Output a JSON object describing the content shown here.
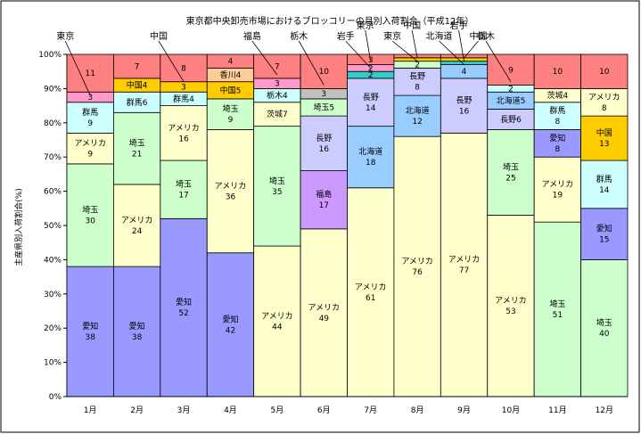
{
  "chart_data": {
    "type": "bar",
    "stacked": true,
    "title": "東京都中央卸売市場におけるブロッコリーの月別入荷割合（平成12年）",
    "ylabel": "主産県別入荷割合(%)",
    "xlabel": "",
    "ylim": [
      0,
      100
    ],
    "y_ticks": [
      "0%",
      "10%",
      "20%",
      "30%",
      "40%",
      "50%",
      "60%",
      "70%",
      "80%",
      "90%",
      "100%"
    ],
    "categories": [
      "1月",
      "2月",
      "3月",
      "4月",
      "5月",
      "6月",
      "7月",
      "8月",
      "9月",
      "10月",
      "11月",
      "12月"
    ],
    "grid": false,
    "colors": {
      "愛知": "#9999ff",
      "アメリカ": "#ffffcc",
      "埼玉": "#ccffcc",
      "群馬": "#ccffff",
      "東京": "#ff99cc",
      "中国": "#ffcc00",
      "香川": "#ffcc99",
      "茨城": "#ffffcc",
      "栃木": "#ccffff",
      "福島": "#ff99cc",
      "長野": "#ccccff",
      "北海道": "#99ccff",
      "岩手": "#33cccc",
      "その他": "#ff8080",
      "gray": "#c0c0c0"
    },
    "stacks": [
      [
        {
          "name": "愛知",
          "value": 38,
          "label": "愛知\n38",
          "color": "#9999ff"
        },
        {
          "name": "埼玉",
          "value": 30,
          "label": "埼玉\n30",
          "color": "#ccffcc"
        },
        {
          "name": "アメリカ",
          "value": 9,
          "label": "アメリカ\n9",
          "color": "#ffffcc"
        },
        {
          "name": "群馬",
          "value": 9,
          "label": "群馬\n9",
          "color": "#ccffff"
        },
        {
          "name": "東京",
          "value": 3,
          "label": "3",
          "color": "#ff99cc"
        },
        {
          "name": "その他",
          "value": 11,
          "label": "11",
          "color": "#ff8080"
        }
      ],
      [
        {
          "name": "愛知",
          "value": 38,
          "label": "愛知\n38",
          "color": "#9999ff"
        },
        {
          "name": "アメリカ",
          "value": 24,
          "label": "アメリカ\n24",
          "color": "#ffffcc"
        },
        {
          "name": "埼玉",
          "value": 21,
          "label": "埼玉\n21",
          "color": "#ccffcc"
        },
        {
          "name": "群馬",
          "value": 6,
          "label": "群馬6",
          "color": "#ccffff"
        },
        {
          "name": "中国",
          "value": 4,
          "label": "中国4",
          "color": "#ffcc00"
        },
        {
          "name": "その他",
          "value": 7,
          "label": "7",
          "color": "#ff8080"
        }
      ],
      [
        {
          "name": "愛知",
          "value": 52,
          "label": "愛知\n52",
          "color": "#9999ff"
        },
        {
          "name": "埼玉",
          "value": 17,
          "label": "埼玉\n17",
          "color": "#ccffcc"
        },
        {
          "name": "アメリカ",
          "value": 16,
          "label": "アメリカ\n16",
          "color": "#ffffcc"
        },
        {
          "name": "群馬",
          "value": 4,
          "label": "群馬4",
          "color": "#ccffff"
        },
        {
          "name": "中国",
          "value": 3,
          "label": "3",
          "color": "#ffcc00"
        },
        {
          "name": "その他",
          "value": 8,
          "label": "8",
          "color": "#ff8080"
        }
      ],
      [
        {
          "name": "愛知",
          "value": 42,
          "label": "愛知\n42",
          "color": "#9999ff"
        },
        {
          "name": "アメリカ",
          "value": 36,
          "label": "アメリカ\n36",
          "color": "#ffffcc"
        },
        {
          "name": "埼玉",
          "value": 9,
          "label": "埼玉\n9",
          "color": "#ccffcc"
        },
        {
          "name": "中国",
          "value": 5,
          "label": "中国5",
          "color": "#ffcc00"
        },
        {
          "name": "香川",
          "value": 4,
          "label": "香川4",
          "color": "#ffcc99"
        },
        {
          "name": "その他",
          "value": 4,
          "label": "4",
          "color": "#ff8080"
        }
      ],
      [
        {
          "name": "アメリカ",
          "value": 44,
          "label": "アメリカ\n44",
          "color": "#ffffcc"
        },
        {
          "name": "埼玉",
          "value": 35,
          "label": "埼玉\n35",
          "color": "#ccffcc"
        },
        {
          "name": "茨城",
          "value": 7,
          "label": "茨城7",
          "color": "#ffffcc"
        },
        {
          "name": "栃木",
          "value": 4,
          "label": "栃木4",
          "color": "#ccffff"
        },
        {
          "name": "福島",
          "value": 3,
          "label": "3",
          "color": "#ff99cc"
        },
        {
          "name": "その他",
          "value": 7,
          "label": "7",
          "color": "#ff8080"
        }
      ],
      [
        {
          "name": "アメリカ",
          "value": 49,
          "label": "アメリカ\n49",
          "color": "#ffffcc"
        },
        {
          "name": "福島",
          "value": 17,
          "label": "福島\n17",
          "color": "#cc99ff"
        },
        {
          "name": "長野",
          "value": 16,
          "label": "長野\n16",
          "color": "#ccccff"
        },
        {
          "name": "埼玉",
          "value": 5,
          "label": "埼玉5",
          "color": "#ccffcc"
        },
        {
          "name": "栃木",
          "value": 3,
          "label": "3",
          "color": "#c0c0c0"
        },
        {
          "name": "その他",
          "value": 10,
          "label": "10",
          "color": "#ff8080"
        }
      ],
      [
        {
          "name": "アメリカ",
          "value": 61,
          "label": "アメリカ\n61",
          "color": "#ffffcc"
        },
        {
          "name": "北海道",
          "value": 18,
          "label": "北海道\n18",
          "color": "#99ccff"
        },
        {
          "name": "長野",
          "value": 14,
          "label": "長野\n14",
          "color": "#ccccff"
        },
        {
          "name": "岩手",
          "value": 2,
          "label": "2",
          "color": "#33cccc"
        },
        {
          "name": "東京",
          "value": 2,
          "label": "2",
          "color": "#ff99cc"
        },
        {
          "name": "その他",
          "value": 3,
          "label": "3",
          "color": "#ff8080"
        }
      ],
      [
        {
          "name": "アメリカ",
          "value": 76,
          "label": "アメリカ\n76",
          "color": "#ffffcc"
        },
        {
          "name": "北海道",
          "value": 12,
          "label": "北海道\n12",
          "color": "#99ccff"
        },
        {
          "name": "長野",
          "value": 8,
          "label": "長野\n8",
          "color": "#ccccff"
        },
        {
          "name": "東京",
          "value": 2,
          "label": "2",
          "color": "#ccffcc"
        },
        {
          "name": "中国",
          "value": 1,
          "label": "",
          "color": "#ffcc00"
        },
        {
          "name": "その他",
          "value": 1,
          "label": "",
          "color": "#ff8080"
        }
      ],
      [
        {
          "name": "アメリカ",
          "value": 77,
          "label": "アメリカ\n77",
          "color": "#ffffcc"
        },
        {
          "name": "長野",
          "value": 16,
          "label": "長野\n16",
          "color": "#ccccff"
        },
        {
          "name": "北海道",
          "value": 4,
          "label": "4",
          "color": "#99ccff"
        },
        {
          "name": "岩手",
          "value": 1,
          "label": "",
          "color": "#33cccc"
        },
        {
          "name": "中国",
          "value": 1,
          "label": "",
          "color": "#ffcc00"
        },
        {
          "name": "その他",
          "value": 1,
          "label": "",
          "color": "#ff8080"
        }
      ],
      [
        {
          "name": "アメリカ",
          "value": 53,
          "label": "アメリカ\n53",
          "color": "#ffffcc"
        },
        {
          "name": "埼玉",
          "value": 25,
          "label": "埼玉\n25",
          "color": "#ccffcc"
        },
        {
          "name": "長野",
          "value": 6,
          "label": "長野6",
          "color": "#ccccff"
        },
        {
          "name": "北海道",
          "value": 5,
          "label": "北海道5",
          "color": "#99ccff"
        },
        {
          "name": "栃木",
          "value": 2,
          "label": "2",
          "color": "#ccffff"
        },
        {
          "name": "その他",
          "value": 9,
          "label": "9",
          "color": "#ff8080"
        }
      ],
      [
        {
          "name": "埼玉",
          "value": 51,
          "label": "埼玉\n51",
          "color": "#ccffcc"
        },
        {
          "name": "アメリカ",
          "value": 19,
          "label": "アメリカ\n19",
          "color": "#ffffcc"
        },
        {
          "name": "愛知",
          "value": 8,
          "label": "愛知\n8",
          "color": "#9999ff"
        },
        {
          "name": "群馬",
          "value": 8,
          "label": "群馬\n8",
          "color": "#ccffff"
        },
        {
          "name": "茨城",
          "value": 4,
          "label": "茨城4",
          "color": "#ffffcc"
        },
        {
          "name": "その他",
          "value": 10,
          "label": "10",
          "color": "#ff8080"
        }
      ],
      [
        {
          "name": "埼玉",
          "value": 40,
          "label": "埼玉\n40",
          "color": "#ccffcc"
        },
        {
          "name": "愛知",
          "value": 15,
          "label": "愛知\n15",
          "color": "#9999ff"
        },
        {
          "name": "群馬",
          "value": 14,
          "label": "群馬\n14",
          "color": "#ccffff"
        },
        {
          "name": "中国",
          "value": 13,
          "label": "中国\n13",
          "color": "#ffcc00"
        },
        {
          "name": "アメリカ",
          "value": 8,
          "label": "アメリカ\n8",
          "color": "#ffffcc"
        },
        {
          "name": "その他",
          "value": 10,
          "label": "10",
          "color": "#ff8080"
        }
      ]
    ],
    "annotations": [
      {
        "text": "東京",
        "month": 0,
        "value": 88
      },
      {
        "text": "中国",
        "month": 2,
        "value": 92
      },
      {
        "text": "福島",
        "month": 4,
        "value": 94
      },
      {
        "text": "栃木",
        "month": 5,
        "value": 91
      },
      {
        "text": "岩手",
        "month": 6,
        "value": 96
      },
      {
        "text": "東京",
        "month": 6,
        "value": 98
      },
      {
        "text": "東京",
        "month": 7,
        "value": 98
      },
      {
        "text": "中国",
        "month": 7,
        "value": 99
      },
      {
        "text": "北海道",
        "month": 8,
        "value": 97
      },
      {
        "text": "岩手",
        "month": 8,
        "value": 98
      },
      {
        "text": "中国",
        "month": 8,
        "value": 99
      },
      {
        "text": "栃木",
        "month": 9,
        "value": 92
      }
    ]
  }
}
